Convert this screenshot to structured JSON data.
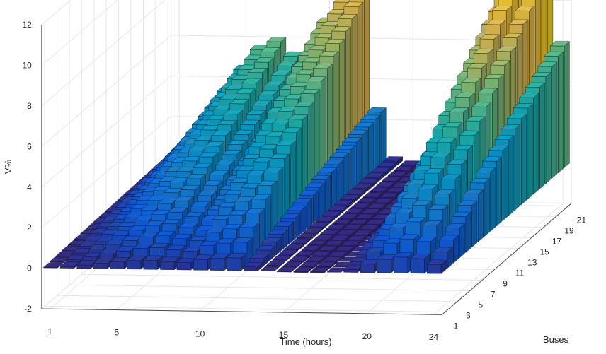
{
  "chart_data": {
    "type": "bar3",
    "title": "",
    "xlabel": "Time (hours)",
    "ylabel": "Buses",
    "zlabel": "V%",
    "x_ticks": [
      1,
      5,
      10,
      15,
      20,
      24
    ],
    "bus_ticks": [
      1,
      3,
      5,
      7,
      9,
      11,
      13,
      15,
      17,
      19,
      21
    ],
    "z_ticks": [
      -2,
      0,
      2,
      4,
      6,
      8,
      10,
      12
    ],
    "zlim": [
      -2,
      12
    ],
    "grid": true,
    "colormap": "parula",
    "hours": [
      1,
      2,
      3,
      4,
      5,
      6,
      7,
      8,
      9,
      10,
      11,
      12,
      13,
      14,
      15,
      16,
      17,
      18,
      19,
      20,
      21,
      22,
      23,
      24
    ],
    "buses": [
      1,
      2,
      3,
      4,
      5,
      6,
      7,
      8,
      9,
      10,
      11,
      12,
      13,
      14,
      15,
      16,
      17,
      18,
      19,
      20,
      21
    ],
    "max_profile_by_hour": [
      0.3,
      1.2,
      2.2,
      3.5,
      4.6,
      5.6,
      6.0,
      5.3,
      4.8,
      7.0,
      8.0,
      8.4,
      2.6,
      0.2,
      -0.4,
      -0.6,
      -0.5,
      0.0,
      1.9,
      5.6,
      8.9,
      10.5,
      9.7,
      6.0
    ],
    "bus_profile_shape": "v_rises_with_bus_index_saturating",
    "bus_shape_exponent": 0.85
  }
}
